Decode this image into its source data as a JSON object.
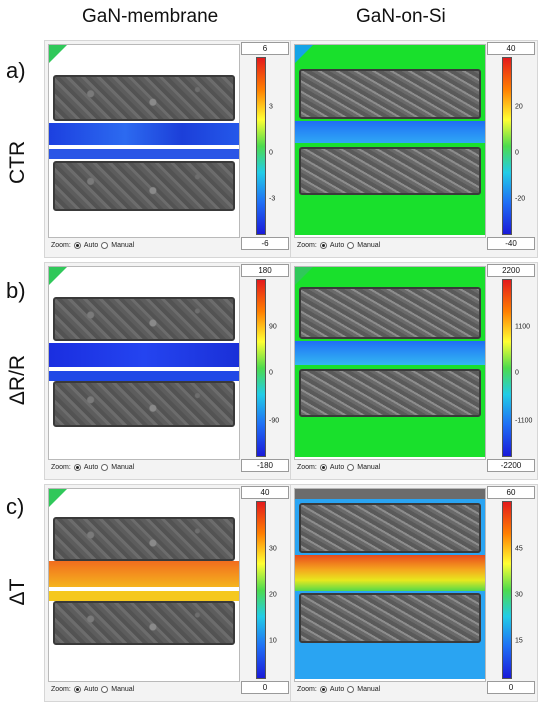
{
  "columns": [
    "GaN-membrane",
    "GaN-on-Si"
  ],
  "rows": [
    {
      "letter": "a)",
      "label": "CTR"
    },
    {
      "letter": "b)",
      "label": "ΔR/R"
    },
    {
      "letter": "c)",
      "label": "ΔT"
    }
  ],
  "zoom": {
    "label": "Zoom:",
    "auto": "Auto",
    "manual": "Manual",
    "selected": "Auto"
  },
  "panels": [
    {
      "name": "ctr-membrane",
      "max": "6",
      "min": "-6",
      "ticks": [
        "3",
        "0",
        "-3"
      ],
      "colormap": "jet"
    },
    {
      "name": "ctr-gan-on-si",
      "max": "40",
      "min": "-40",
      "ticks": [
        "20",
        "0",
        "-20"
      ],
      "colormap": "jet"
    },
    {
      "name": "drr-membrane",
      "max": "180",
      "min": "-180",
      "ticks": [
        "90",
        "0",
        "-90"
      ],
      "colormap": "jet"
    },
    {
      "name": "drr-gan-on-si",
      "max": "2200",
      "min": "-2200",
      "ticks": [
        "1100",
        "0",
        "-1100"
      ],
      "colormap": "jet"
    },
    {
      "name": "dt-membrane",
      "max": "40",
      "min": "0",
      "ticks": [
        "30",
        "20",
        "10"
      ],
      "colormap": "jet"
    },
    {
      "name": "dt-gan-on-si",
      "max": "60",
      "min": "0",
      "ticks": [
        "45",
        "30",
        "15"
      ],
      "colormap": "jet"
    }
  ],
  "colors": {
    "map_blue": "#1f4ee6",
    "map_cyan": "#1fb8f5",
    "map_green": "#19e02c",
    "map_orange": "#f2781e",
    "map_yellow": "#f5d51e",
    "device_gray": "#5e5e5e"
  }
}
